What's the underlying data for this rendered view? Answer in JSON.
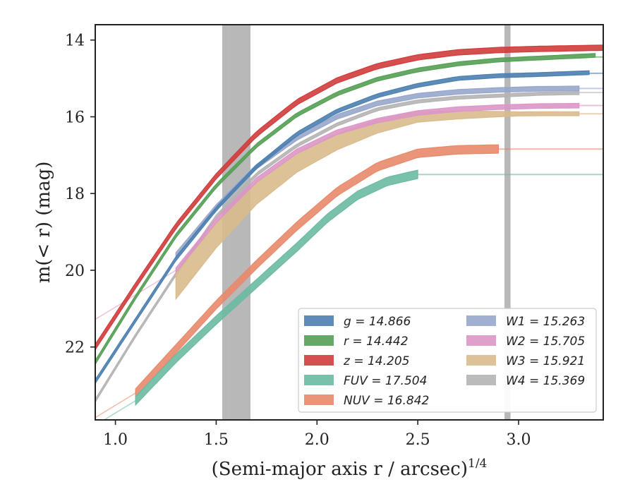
{
  "chart_data": {
    "type": "area",
    "xlabel": "(Semi-major axis r / arcsec)",
    "xlabel_sup": "1/4",
    "ylabel": "m(< r) (mag)",
    "xlim": [
      0.9,
      3.42
    ],
    "ylim": [
      23.9,
      13.6
    ],
    "y_inverted": true,
    "x_ticks": [
      1.0,
      1.5,
      2.0,
      2.5,
      3.0
    ],
    "x_tick_labels": [
      "1.0",
      "1.5",
      "2.0",
      "2.5",
      "3.0"
    ],
    "y_ticks": [
      14,
      16,
      18,
      20,
      22
    ],
    "y_tick_labels": [
      "14",
      "16",
      "18",
      "20",
      "22"
    ],
    "legend_placement": "lower-right",
    "legend_columns": 2,
    "series": [
      {
        "key": "g",
        "label": "g = 14.866",
        "color": "#4c7fb0",
        "asymptote": 14.866,
        "x": [
          0.9,
          1.1,
          1.3,
          1.5,
          1.7,
          1.9,
          2.1,
          2.3,
          2.5,
          2.7,
          2.9,
          3.1,
          3.35
        ],
        "y": [
          22.9,
          21.3,
          19.7,
          18.4,
          17.3,
          16.45,
          15.85,
          15.45,
          15.18,
          15.0,
          14.93,
          14.9,
          14.85
        ],
        "width": 0.1,
        "extend_to": 3.42
      },
      {
        "key": "r",
        "label": "r = 14.442",
        "color": "#55a055",
        "asymptote": 14.442,
        "x": [
          0.9,
          1.1,
          1.3,
          1.5,
          1.7,
          1.9,
          2.1,
          2.3,
          2.5,
          2.7,
          2.9,
          3.1,
          3.38
        ],
        "y": [
          22.4,
          20.7,
          19.1,
          17.8,
          16.75,
          15.95,
          15.4,
          15.02,
          14.78,
          14.62,
          14.52,
          14.47,
          14.4
        ],
        "width": 0.1,
        "extend_to": 3.42
      },
      {
        "key": "z",
        "label": "z = 14.205",
        "color": "#d03c3c",
        "asymptote": 14.205,
        "x": [
          0.9,
          1.1,
          1.3,
          1.5,
          1.7,
          1.9,
          2.1,
          2.3,
          2.5,
          2.7,
          2.9,
          3.1,
          3.42
        ],
        "y": [
          22.0,
          20.4,
          18.85,
          17.55,
          16.45,
          15.62,
          15.05,
          14.68,
          14.45,
          14.32,
          14.26,
          14.23,
          14.2
        ],
        "width": 0.14,
        "extend_to": 3.42
      },
      {
        "key": "FUV",
        "label": "FUV = 17.504",
        "color": "#6cbaa2",
        "asymptote": 17.504,
        "x": [
          1.1,
          1.3,
          1.5,
          1.7,
          1.9,
          2.05,
          2.2,
          2.35,
          2.5
        ],
        "y": [
          23.4,
          22.3,
          21.3,
          20.35,
          19.4,
          18.65,
          18.05,
          17.68,
          17.5
        ],
        "width": 0.22,
        "extend_to": 3.42
      },
      {
        "key": "NUV",
        "label": "NUV = 16.842",
        "color": "#e8896a",
        "asymptote": 16.842,
        "x": [
          1.1,
          1.3,
          1.5,
          1.7,
          1.9,
          2.1,
          2.3,
          2.5,
          2.7,
          2.9
        ],
        "y": [
          23.2,
          22.05,
          20.9,
          19.85,
          18.85,
          17.95,
          17.3,
          16.95,
          16.86,
          16.84
        ],
        "width": 0.22,
        "extend_to": 3.42
      },
      {
        "key": "W1",
        "label": "W1 = 15.263",
        "color": "#97a6cb",
        "asymptote": 15.263,
        "x": [
          1.3,
          1.5,
          1.7,
          1.9,
          2.1,
          2.3,
          2.5,
          2.7,
          2.9,
          3.1,
          3.3
        ],
        "y": [
          19.6,
          18.35,
          17.3,
          16.55,
          16.0,
          15.65,
          15.45,
          15.35,
          15.3,
          15.27,
          15.26
        ],
        "width": 0.12,
        "extend_to": 3.42
      },
      {
        "key": "W2",
        "label": "W2 = 15.705",
        "color": "#dd96c6",
        "asymptote": 15.705,
        "x": [
          1.3,
          1.5,
          1.7,
          1.9,
          2.1,
          2.3,
          2.5,
          2.7,
          2.9,
          3.1,
          3.3
        ],
        "y": [
          20.0,
          18.7,
          17.65,
          16.9,
          16.4,
          16.1,
          15.9,
          15.8,
          15.75,
          15.72,
          15.71
        ],
        "width": 0.12,
        "extend_to": 3.42
      },
      {
        "key": "W3",
        "label": "W3 = 15.921",
        "color": "#d9bb8c",
        "asymptote": 15.921,
        "x": [
          1.3,
          1.5,
          1.7,
          1.9,
          2.1,
          2.3,
          2.5,
          2.7,
          2.9,
          3.1,
          3.3
        ],
        "y": [
          20.4,
          19.1,
          18.0,
          17.2,
          16.65,
          16.25,
          16.0,
          15.95,
          15.93,
          15.92,
          15.92
        ],
        "width": 0.7,
        "extend_to": 3.42
      },
      {
        "key": "W4",
        "label": "W4 = 15.369",
        "color": "#b4b4b4",
        "asymptote": 15.369,
        "x": [
          0.9,
          1.1,
          1.3,
          1.5,
          1.7,
          1.9,
          2.1,
          2.3,
          2.5,
          2.7,
          2.9,
          3.1,
          3.3
        ],
        "y": [
          23.4,
          21.7,
          20.1,
          18.6,
          17.5,
          16.75,
          16.2,
          15.8,
          15.6,
          15.5,
          15.45,
          15.4,
          15.38
        ],
        "width": 0.08,
        "extend_to": 3.42
      }
    ]
  }
}
